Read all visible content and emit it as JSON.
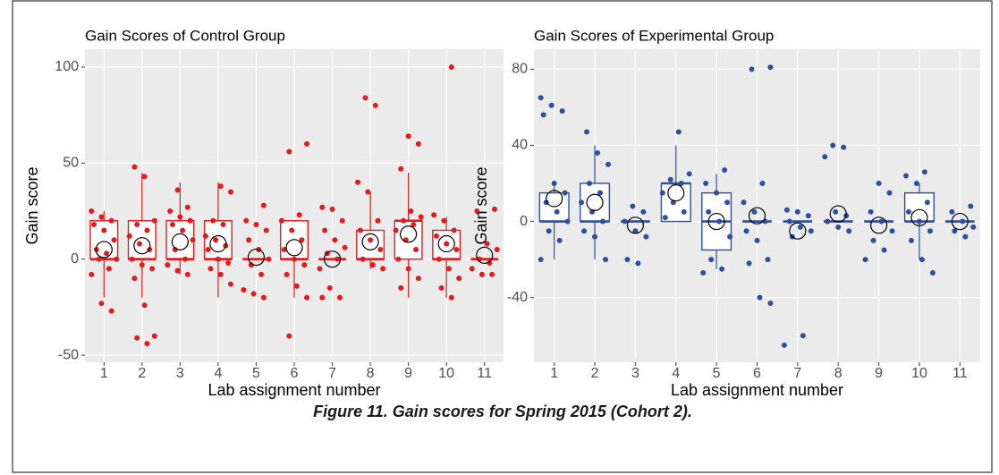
{
  "chart_data": [
    {
      "type": "box",
      "title": "Gain Scores of Control Group",
      "x_label": "Lab assignment number",
      "y_label": "Gain score",
      "color": "#e41a1c",
      "categories": [
        "1",
        "2",
        "3",
        "4",
        "5",
        "6",
        "7",
        "8",
        "9",
        "10",
        "11"
      ],
      "ylim": [
        -53.7,
        109.3
      ],
      "yticks": [
        -50,
        0,
        50,
        100
      ],
      "grid": true,
      "boxes": [
        {
          "low": -20,
          "q1": 0,
          "median": 0,
          "q3": 20,
          "high": 25
        },
        {
          "low": -20,
          "q1": 0,
          "median": 0,
          "q3": 20,
          "high": 45
        },
        {
          "low": -8,
          "q1": 0,
          "median": 0,
          "q3": 20,
          "high": 40
        },
        {
          "low": -20,
          "q1": 0,
          "median": 0,
          "q3": 20,
          "high": 40
        },
        {
          "low": 0,
          "q1": 0,
          "median": 0,
          "q3": 0,
          "high": 0
        },
        {
          "low": -20,
          "q1": 0,
          "median": 0,
          "q3": 20,
          "high": 20
        },
        {
          "low": 0,
          "q1": 0,
          "median": 0,
          "q3": 0,
          "high": 0
        },
        {
          "low": -5,
          "q1": 0,
          "median": 0,
          "q3": 15,
          "high": 35
        },
        {
          "low": -20,
          "q1": 0,
          "median": 20,
          "q3": 20,
          "high": 45
        },
        {
          "low": -20,
          "q1": 0,
          "median": 0,
          "q3": 15,
          "high": 22
        },
        {
          "low": 0,
          "q1": 0,
          "median": 0,
          "q3": 0,
          "high": 0
        }
      ],
      "means": [
        5,
        7,
        9,
        8,
        1,
        6,
        0,
        9,
        13,
        8,
        2
      ],
      "points": [
        [
          25,
          22,
          20,
          18,
          15,
          10,
          5,
          3,
          0,
          0,
          -5,
          -8,
          -23,
          -27
        ],
        [
          48,
          43,
          20,
          18,
          15,
          12,
          8,
          5,
          0,
          -3,
          -5,
          -10,
          -24,
          -40,
          -41,
          -44
        ],
        [
          36,
          27,
          25,
          22,
          20,
          18,
          15,
          10,
          5,
          0,
          -3,
          -6,
          -8
        ],
        [
          38,
          35,
          20,
          18,
          12,
          10,
          7,
          5,
          0,
          -2,
          -5,
          -8,
          -13
        ],
        [
          28,
          20,
          18,
          15,
          10,
          5,
          0,
          -3,
          -8,
          -16,
          -18,
          -20
        ],
        [
          60,
          56,
          23,
          20,
          15,
          10,
          5,
          0,
          -3,
          -8,
          -14,
          -20,
          -40
        ],
        [
          27,
          26,
          20,
          15,
          10,
          6,
          3,
          0,
          -5,
          -15,
          -20,
          -20
        ],
        [
          84,
          80,
          40,
          35,
          20,
          15,
          10,
          5,
          0,
          -3,
          -5
        ],
        [
          64,
          60,
          47,
          25,
          22,
          20,
          18,
          15,
          10,
          5,
          0,
          -5,
          -10,
          -15
        ],
        [
          100,
          23,
          20,
          15,
          12,
          8,
          5,
          0,
          -5,
          -10,
          -15,
          -20
        ],
        [
          26,
          25,
          8,
          5,
          0,
          -2,
          -5,
          -8,
          -8
        ]
      ]
    },
    {
      "type": "box",
      "title": "Gain Scores of Experimental Group",
      "x_label": "Lab assignment number",
      "y_label": "Gain score",
      "color": "#2f4ea0",
      "categories": [
        "1",
        "2",
        "3",
        "4",
        "5",
        "6",
        "7",
        "8",
        "9",
        "10",
        "11"
      ],
      "ylim": [
        -74,
        90.5
      ],
      "yticks": [
        -40,
        0,
        40,
        80
      ],
      "grid": true,
      "boxes": [
        {
          "low": -20,
          "q1": 0,
          "median": 0,
          "q3": 15,
          "high": 20
        },
        {
          "low": -20,
          "q1": 0,
          "median": 0,
          "q3": 20,
          "high": 40
        },
        {
          "low": 0,
          "q1": 0,
          "median": 0,
          "q3": 0,
          "high": 0
        },
        {
          "low": 0,
          "q1": 0,
          "median": 20,
          "q3": 20,
          "high": 40
        },
        {
          "low": -25,
          "q1": -15,
          "median": 0,
          "q3": 15,
          "high": 25
        },
        {
          "low": 0,
          "q1": 0,
          "median": 0,
          "q3": 0,
          "high": 0
        },
        {
          "low": 0,
          "q1": 0,
          "median": 0,
          "q3": 0,
          "high": 0
        },
        {
          "low": 0,
          "q1": 0,
          "median": 0,
          "q3": 0,
          "high": 0
        },
        {
          "low": 0,
          "q1": 0,
          "median": 0,
          "q3": 0,
          "high": 0
        },
        {
          "low": -20,
          "q1": 0,
          "median": 0,
          "q3": 15,
          "high": 20
        },
        {
          "low": 0,
          "q1": 0,
          "median": 0,
          "q3": 0,
          "high": 0
        }
      ],
      "means": [
        12,
        10,
        -2,
        15,
        0,
        3,
        -5,
        4,
        -2,
        2,
        0
      ],
      "points": [
        [
          65,
          61,
          58,
          56,
          20,
          15,
          10,
          5,
          0,
          -5,
          -10,
          -20
        ],
        [
          47,
          36,
          30,
          20,
          15,
          10,
          5,
          0,
          -5,
          -8,
          -20
        ],
        [
          8,
          5,
          0,
          -5,
          -8,
          -20,
          -22
        ],
        [
          47,
          25,
          22,
          20,
          15,
          10,
          5,
          2
        ],
        [
          27,
          20,
          15,
          10,
          5,
          0,
          -8,
          -20,
          -25,
          -27
        ],
        [
          81,
          80,
          20,
          10,
          5,
          0,
          -5,
          -10,
          -20,
          -22,
          -40,
          -43
        ],
        [
          6,
          5,
          3,
          0,
          -3,
          -5,
          -8,
          -60,
          -65
        ],
        [
          40,
          39,
          34,
          5,
          3,
          0,
          -3,
          -5
        ],
        [
          20,
          15,
          5,
          0,
          -5,
          -10,
          -15,
          -20
        ],
        [
          26,
          24,
          20,
          10,
          5,
          0,
          -5,
          -10,
          -20,
          -27
        ],
        [
          8,
          5,
          0,
          -3,
          -5,
          -8
        ]
      ]
    }
  ],
  "caption": "Figure 11. Gain scores for Spring 2015 (Cohort 2)."
}
